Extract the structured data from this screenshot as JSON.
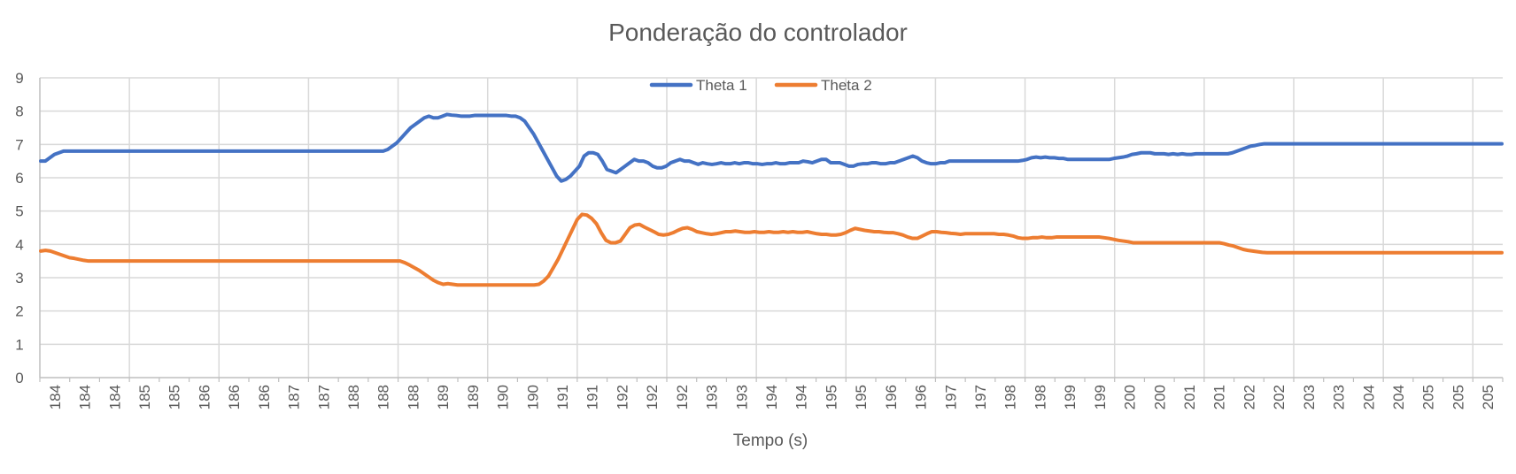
{
  "chart_data": {
    "type": "line",
    "title": "Ponderação do controlador",
    "xlabel": "Tempo (s)",
    "ylabel": "",
    "ylim": [
      0,
      9
    ],
    "yticks": [
      "0",
      "1",
      "2",
      "3",
      "4",
      "5",
      "6",
      "7",
      "8",
      "9"
    ],
    "x_tick_labels": [
      "184",
      "184",
      "184",
      "185",
      "185",
      "186",
      "186",
      "186",
      "187",
      "187",
      "188",
      "188",
      "188",
      "189",
      "189",
      "190",
      "190",
      "191",
      "191",
      "192",
      "192",
      "192",
      "193",
      "193",
      "194",
      "194",
      "195",
      "195",
      "196",
      "196",
      "197",
      "197",
      "198",
      "198",
      "199",
      "199",
      "200",
      "200",
      "201",
      "201",
      "202",
      "202",
      "203",
      "203",
      "204",
      "204",
      "205",
      "205",
      "205"
    ],
    "grid": true,
    "legend_position": "top-center",
    "series": [
      {
        "name": "Theta 1",
        "color": "#4472C4",
        "values": [
          6.5,
          6.5,
          6.6,
          6.7,
          6.75,
          6.8,
          6.8,
          6.8,
          6.8,
          6.8,
          6.8,
          6.8,
          6.8,
          6.8,
          6.8,
          6.8,
          6.8,
          6.8,
          6.8,
          6.8,
          6.8,
          6.8,
          6.8,
          6.8,
          6.8,
          6.8,
          6.8,
          6.8,
          6.8,
          6.8,
          6.8,
          6.8,
          6.8,
          6.8,
          6.8,
          6.8,
          6.8,
          6.8,
          6.8,
          6.8,
          6.8,
          6.8,
          6.8,
          6.8,
          6.8,
          6.8,
          6.8,
          6.8,
          6.8,
          6.8,
          6.8,
          6.8,
          6.8,
          6.8,
          6.8,
          6.8,
          6.8,
          6.8,
          6.8,
          6.8,
          6.8,
          6.8,
          6.8,
          6.8,
          6.8,
          6.8,
          6.8,
          6.8,
          6.8,
          6.8,
          6.8,
          6.8,
          6.8,
          6.8,
          6.8,
          6.8,
          6.85,
          6.95,
          7.05,
          7.2,
          7.35,
          7.5,
          7.6,
          7.7,
          7.8,
          7.85,
          7.8,
          7.8,
          7.85,
          7.9,
          7.88,
          7.87,
          7.85,
          7.85,
          7.85,
          7.87,
          7.87,
          7.87,
          7.87,
          7.87,
          7.87,
          7.87,
          7.87,
          7.85,
          7.85,
          7.8,
          7.7,
          7.5,
          7.3,
          7.05,
          6.8,
          6.55,
          6.3,
          6.05,
          5.9,
          5.95,
          6.05,
          6.2,
          6.35,
          6.65,
          6.75,
          6.75,
          6.7,
          6.5,
          6.25,
          6.2,
          6.15,
          6.25,
          6.35,
          6.45,
          6.55,
          6.5,
          6.5,
          6.45,
          6.35,
          6.3,
          6.3,
          6.35,
          6.45,
          6.5,
          6.55,
          6.5,
          6.5,
          6.45,
          6.4,
          6.45,
          6.42,
          6.4,
          6.42,
          6.45,
          6.42,
          6.42,
          6.45,
          6.42,
          6.45,
          6.45,
          6.42,
          6.42,
          6.4,
          6.42,
          6.42,
          6.45,
          6.42,
          6.42,
          6.45,
          6.45,
          6.45,
          6.5,
          6.48,
          6.45,
          6.5,
          6.55,
          6.55,
          6.45,
          6.45,
          6.45,
          6.4,
          6.35,
          6.35,
          6.4,
          6.42,
          6.42,
          6.45,
          6.45,
          6.42,
          6.42,
          6.45,
          6.45,
          6.5,
          6.55,
          6.6,
          6.65,
          6.6,
          6.5,
          6.45,
          6.42,
          6.42,
          6.45,
          6.45,
          6.5,
          6.5,
          6.5,
          6.5,
          6.5,
          6.5,
          6.5,
          6.5,
          6.5,
          6.5,
          6.5,
          6.5,
          6.5,
          6.5,
          6.5,
          6.5,
          6.52,
          6.55,
          6.6,
          6.62,
          6.6,
          6.62,
          6.6,
          6.6,
          6.58,
          6.58,
          6.55,
          6.55,
          6.55,
          6.55,
          6.55,
          6.55,
          6.55,
          6.55,
          6.55,
          6.55,
          6.58,
          6.6,
          6.62,
          6.65,
          6.7,
          6.72,
          6.75,
          6.75,
          6.75,
          6.72,
          6.72,
          6.72,
          6.7,
          6.72,
          6.7,
          6.72,
          6.7,
          6.7,
          6.72,
          6.72,
          6.72,
          6.72,
          6.72,
          6.72,
          6.72,
          6.72,
          6.75,
          6.8,
          6.85,
          6.9,
          6.95,
          6.97,
          7.0,
          7.02,
          7.02,
          7.02,
          7.02,
          7.02,
          7.02,
          7.02,
          7.02,
          7.02,
          7.02,
          7.02,
          7.02,
          7.02,
          7.02,
          7.02,
          7.02,
          7.02,
          7.02,
          7.02,
          7.02,
          7.02,
          7.02,
          7.02,
          7.02,
          7.02,
          7.02,
          7.02,
          7.02,
          7.02,
          7.02,
          7.02,
          7.02,
          7.02,
          7.02,
          7.02,
          7.02,
          7.02,
          7.02,
          7.02,
          7.02,
          7.02,
          7.02,
          7.02,
          7.02,
          7.02,
          7.02,
          7.02,
          7.02,
          7.02,
          7.02,
          7.02,
          7.02,
          7.02
        ]
      },
      {
        "name": "Theta 2",
        "color": "#ED7D31",
        "values": [
          3.8,
          3.82,
          3.8,
          3.75,
          3.7,
          3.65,
          3.6,
          3.58,
          3.55,
          3.52,
          3.5,
          3.5,
          3.5,
          3.5,
          3.5,
          3.5,
          3.5,
          3.5,
          3.5,
          3.5,
          3.5,
          3.5,
          3.5,
          3.5,
          3.5,
          3.5,
          3.5,
          3.5,
          3.5,
          3.5,
          3.5,
          3.5,
          3.5,
          3.5,
          3.5,
          3.5,
          3.5,
          3.5,
          3.5,
          3.5,
          3.5,
          3.5,
          3.5,
          3.5,
          3.5,
          3.5,
          3.5,
          3.5,
          3.5,
          3.5,
          3.5,
          3.5,
          3.5,
          3.5,
          3.5,
          3.5,
          3.5,
          3.5,
          3.5,
          3.5,
          3.5,
          3.5,
          3.5,
          3.5,
          3.5,
          3.5,
          3.5,
          3.5,
          3.5,
          3.5,
          3.5,
          3.5,
          3.5,
          3.5,
          3.5,
          3.5,
          3.45,
          3.38,
          3.3,
          3.22,
          3.12,
          3.02,
          2.92,
          2.85,
          2.8,
          2.82,
          2.8,
          2.78,
          2.78,
          2.78,
          2.78,
          2.78,
          2.78,
          2.78,
          2.78,
          2.78,
          2.78,
          2.78,
          2.78,
          2.78,
          2.78,
          2.78,
          2.78,
          2.78,
          2.8,
          2.9,
          3.05,
          3.3,
          3.55,
          3.85,
          4.15,
          4.45,
          4.75,
          4.9,
          4.88,
          4.78,
          4.62,
          4.35,
          4.12,
          4.05,
          4.05,
          4.1,
          4.3,
          4.5,
          4.58,
          4.6,
          4.52,
          4.45,
          4.38,
          4.3,
          4.28,
          4.3,
          4.35,
          4.42,
          4.48,
          4.5,
          4.45,
          4.38,
          4.35,
          4.32,
          4.3,
          4.32,
          4.35,
          4.38,
          4.38,
          4.4,
          4.38,
          4.36,
          4.36,
          4.38,
          4.36,
          4.36,
          4.38,
          4.36,
          4.36,
          4.38,
          4.36,
          4.38,
          4.36,
          4.36,
          4.38,
          4.35,
          4.32,
          4.3,
          4.3,
          4.28,
          4.28,
          4.3,
          4.35,
          4.42,
          4.48,
          4.45,
          4.42,
          4.4,
          4.38,
          4.38,
          4.36,
          4.35,
          4.35,
          4.32,
          4.28,
          4.22,
          4.18,
          4.18,
          4.25,
          4.32,
          4.38,
          4.38,
          4.36,
          4.35,
          4.33,
          4.32,
          4.3,
          4.32,
          4.32,
          4.32,
          4.32,
          4.32,
          4.32,
          4.32,
          4.3,
          4.3,
          4.28,
          4.25,
          4.2,
          4.18,
          4.18,
          4.2,
          4.2,
          4.22,
          4.2,
          4.2,
          4.22,
          4.22,
          4.22,
          4.22,
          4.22,
          4.22,
          4.22,
          4.22,
          4.22,
          4.22,
          4.2,
          4.18,
          4.15,
          4.12,
          4.1,
          4.08,
          4.05,
          4.05,
          4.05,
          4.05,
          4.05,
          4.05,
          4.05,
          4.05,
          4.05,
          4.05,
          4.05,
          4.05,
          4.05,
          4.05,
          4.05,
          4.05,
          4.05,
          4.05,
          4.05,
          4.02,
          3.98,
          3.95,
          3.9,
          3.85,
          3.82,
          3.8,
          3.78,
          3.76,
          3.75,
          3.75,
          3.75,
          3.75,
          3.75,
          3.75,
          3.75,
          3.75,
          3.75,
          3.75,
          3.75,
          3.75,
          3.75,
          3.75,
          3.75,
          3.75,
          3.75,
          3.75,
          3.75,
          3.75,
          3.75,
          3.75,
          3.75,
          3.75,
          3.75,
          3.75,
          3.75,
          3.75,
          3.75,
          3.75,
          3.75,
          3.75,
          3.75,
          3.75,
          3.75,
          3.75,
          3.75,
          3.75,
          3.75,
          3.75,
          3.75,
          3.75,
          3.75,
          3.75,
          3.75,
          3.75,
          3.75,
          3.75,
          3.75,
          3.75
        ]
      }
    ]
  }
}
